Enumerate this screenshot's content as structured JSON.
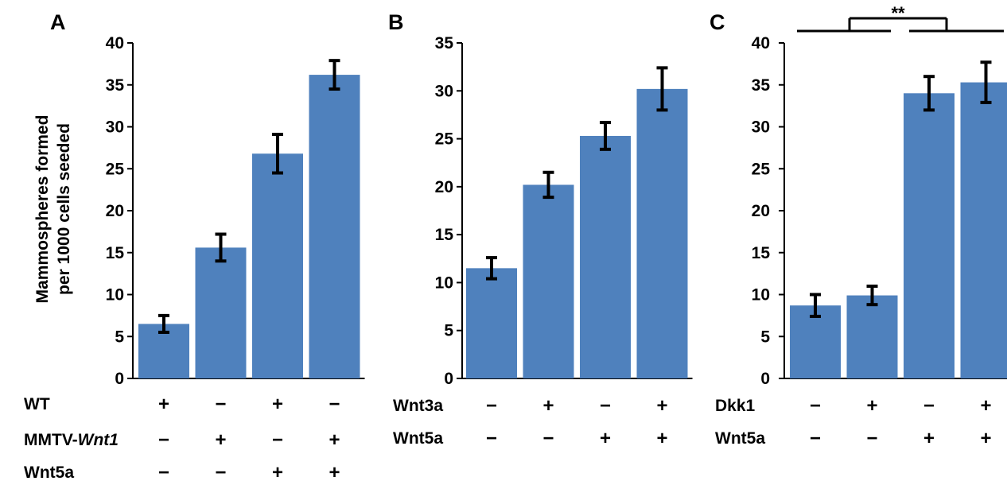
{
  "figure": {
    "ylabel_line1": "Mammospheres formed",
    "ylabel_line2": "per 1000 cells seeded",
    "bar_color": "#4F81BD",
    "significance": "**"
  },
  "chart_data": [
    {
      "type": "bar",
      "panel_label": "A",
      "ylim": [
        0,
        40
      ],
      "yticks": [
        "0",
        "5",
        "10",
        "15",
        "20",
        "25",
        "30",
        "35",
        "40"
      ],
      "values": [
        6.5,
        15.6,
        26.8,
        36.2
      ],
      "errors": [
        1.0,
        1.6,
        2.3,
        1.7
      ],
      "conditions": [
        {
          "name": "WT",
          "name_prefix": "",
          "name_italic": "",
          "signs": [
            "+",
            "−",
            "+",
            "−"
          ]
        },
        {
          "name": "MMTV-Wnt1",
          "name_prefix": "MMTV-",
          "name_italic": "Wnt1",
          "signs": [
            "−",
            "+",
            "−",
            "+"
          ]
        },
        {
          "name": "Wnt5a",
          "name_prefix": "",
          "name_italic": "",
          "signs": [
            "−",
            "−",
            "+",
            "+"
          ]
        }
      ]
    },
    {
      "type": "bar",
      "panel_label": "B",
      "ylim": [
        0,
        35
      ],
      "yticks": [
        "0",
        "5",
        "10",
        "15",
        "20",
        "25",
        "30",
        "35"
      ],
      "values": [
        11.5,
        20.2,
        25.3,
        30.2
      ],
      "errors": [
        1.1,
        1.3,
        1.4,
        2.2
      ],
      "conditions": [
        {
          "name": "Wnt3a",
          "name_prefix": "",
          "name_italic": "",
          "signs": [
            "−",
            "+",
            "−",
            "+"
          ]
        },
        {
          "name": "Wnt5a",
          "name_prefix": "",
          "name_italic": "",
          "signs": [
            "−",
            "−",
            "+",
            "+"
          ]
        }
      ]
    },
    {
      "type": "bar",
      "panel_label": "C",
      "ylim": [
        0,
        40
      ],
      "yticks": [
        "0",
        "5",
        "10",
        "15",
        "20",
        "25",
        "30",
        "35",
        "40"
      ],
      "values": [
        8.7,
        9.9,
        34.0,
        35.3
      ],
      "errors": [
        1.3,
        1.1,
        2.0,
        2.4
      ],
      "conditions": [
        {
          "name": "Dkk1",
          "name_prefix": "",
          "name_italic": "",
          "signs": [
            "−",
            "+",
            "−",
            "+"
          ]
        },
        {
          "name": "Wnt5a",
          "name_prefix": "",
          "name_italic": "",
          "signs": [
            "−",
            "−",
            "+",
            "+"
          ]
        }
      ]
    }
  ]
}
